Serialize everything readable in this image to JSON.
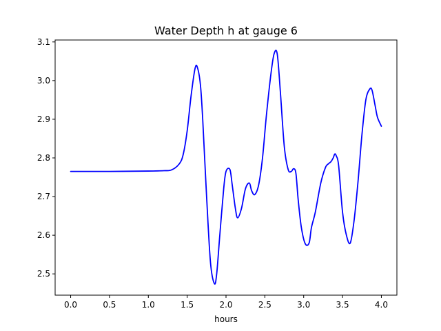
{
  "chart_data": {
    "type": "line",
    "title": "Water Depth h at gauge 6",
    "xlabel": "hours",
    "ylabel": "",
    "xlim": [
      -0.2,
      4.2
    ],
    "ylim": [
      2.445,
      3.105
    ],
    "x_ticks": [
      0.0,
      0.5,
      1.0,
      1.5,
      2.0,
      2.5,
      3.0,
      3.5,
      4.0
    ],
    "x_tick_labels": [
      "0.0",
      "0.5",
      "1.0",
      "1.5",
      "2.0",
      "2.5",
      "3.0",
      "3.5",
      "4.0"
    ],
    "y_ticks": [
      2.5,
      2.6,
      2.7,
      2.8,
      2.9,
      3.0,
      3.1
    ],
    "y_tick_labels": [
      "2.5",
      "2.6",
      "2.7",
      "2.8",
      "2.9",
      "3.0",
      "3.1"
    ],
    "grid": false,
    "line_color": "#0000ff",
    "series": [
      {
        "x": [
          0.0,
          0.5,
          1.0,
          1.2,
          1.3,
          1.4,
          1.45,
          1.5,
          1.55,
          1.6,
          1.63,
          1.67,
          1.7,
          1.75,
          1.8,
          1.85,
          1.88,
          1.92,
          1.97,
          2.0,
          2.05,
          2.08,
          2.12,
          2.15,
          2.2,
          2.25,
          2.3,
          2.33,
          2.37,
          2.42,
          2.47,
          2.52,
          2.58,
          2.62,
          2.66,
          2.7,
          2.75,
          2.8,
          2.84,
          2.87,
          2.9,
          2.93,
          2.97,
          3.02,
          3.07,
          3.1,
          3.15,
          3.22,
          3.28,
          3.32,
          3.35,
          3.38,
          3.4,
          3.42,
          3.45,
          3.5,
          3.55,
          3.6,
          3.65,
          3.7,
          3.75,
          3.8,
          3.85,
          3.88,
          3.92,
          3.95,
          4.0
        ],
        "y": [
          2.765,
          2.765,
          2.766,
          2.767,
          2.769,
          2.785,
          2.81,
          2.87,
          2.96,
          3.03,
          3.035,
          2.99,
          2.9,
          2.7,
          2.53,
          2.475,
          2.5,
          2.6,
          2.72,
          2.765,
          2.77,
          2.73,
          2.67,
          2.645,
          2.67,
          2.72,
          2.735,
          2.715,
          2.705,
          2.73,
          2.8,
          2.91,
          3.02,
          3.07,
          3.068,
          2.97,
          2.83,
          2.77,
          2.765,
          2.772,
          2.76,
          2.69,
          2.62,
          2.578,
          2.58,
          2.62,
          2.66,
          2.735,
          2.775,
          2.785,
          2.79,
          2.8,
          2.81,
          2.805,
          2.78,
          2.66,
          2.6,
          2.58,
          2.64,
          2.74,
          2.86,
          2.95,
          2.978,
          2.975,
          2.935,
          2.905,
          2.882
        ]
      }
    ]
  }
}
